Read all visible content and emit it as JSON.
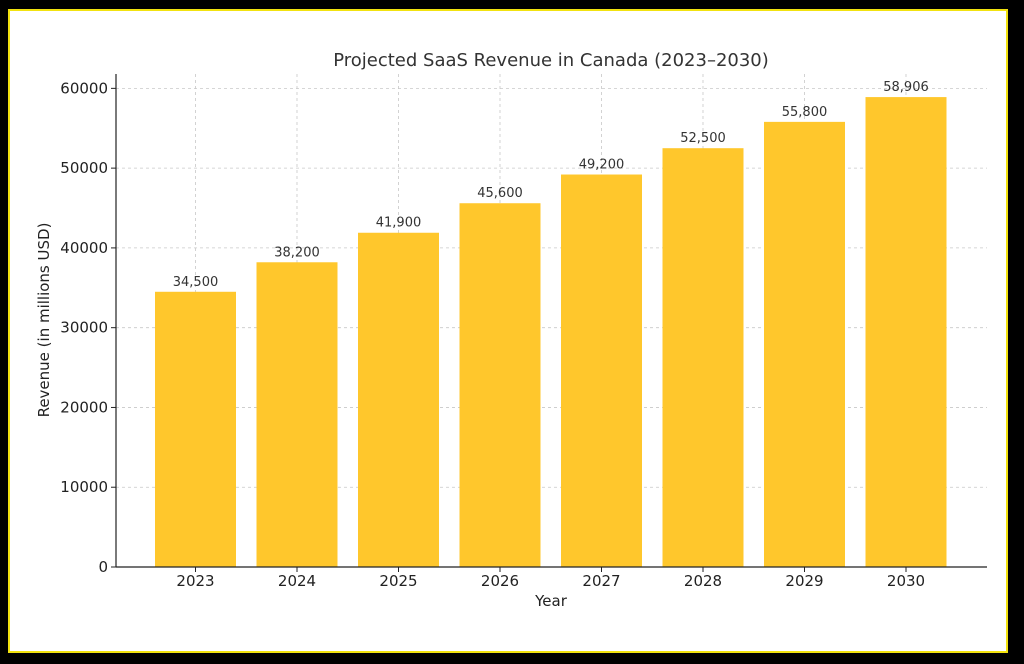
{
  "chart_data": {
    "type": "bar",
    "title": "Projected SaaS Revenue in Canada (2023–2030)",
    "xlabel": "Year",
    "ylabel": "Revenue (in millions USD)",
    "categories": [
      "2023",
      "2024",
      "2025",
      "2026",
      "2027",
      "2028",
      "2029",
      "2030"
    ],
    "values": [
      34500,
      38200,
      41900,
      45600,
      49200,
      52500,
      55800,
      58906
    ],
    "data_labels": [
      "34,500",
      "38,200",
      "41,900",
      "45,600",
      "49,200",
      "52,500",
      "55,800",
      "58,906"
    ],
    "yticks": [
      0,
      10000,
      20000,
      30000,
      40000,
      50000,
      60000
    ],
    "ylim": [
      0,
      61800
    ],
    "grid": true,
    "bar_color": "#ffc72c"
  }
}
